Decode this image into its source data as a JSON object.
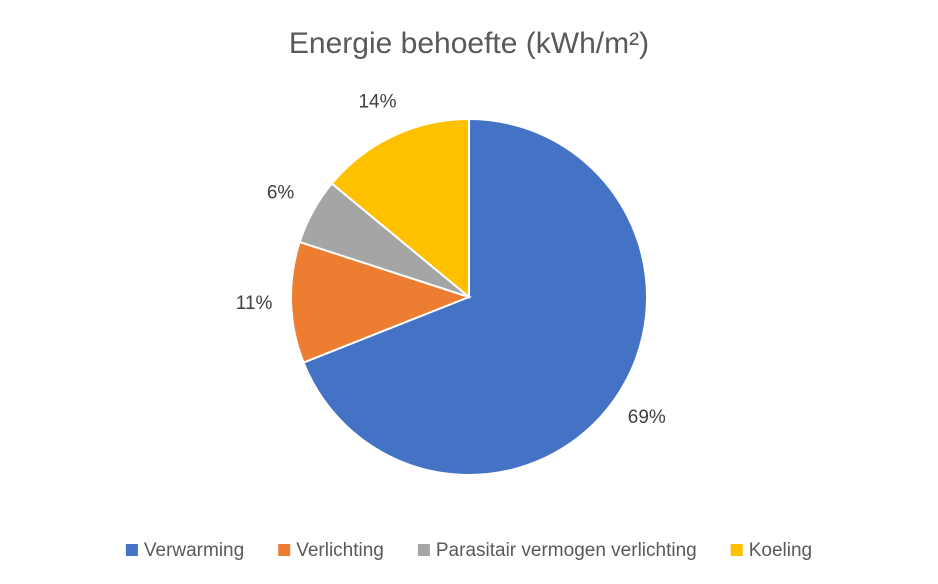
{
  "chart_data": {
    "type": "pie",
    "title": "Energie behoefte (kWh/m²)",
    "categories": [
      "Verwarming",
      "Verlichting",
      "Parasitair vermogen verlichting",
      "Koeling"
    ],
    "values": [
      69,
      11,
      6,
      14
    ],
    "value_labels": [
      "69%",
      "11%",
      "6%",
      "14%"
    ],
    "colors": [
      "#4472c4",
      "#ed7d31",
      "#a5a5a5",
      "#ffc000"
    ],
    "legend": "bottom"
  }
}
